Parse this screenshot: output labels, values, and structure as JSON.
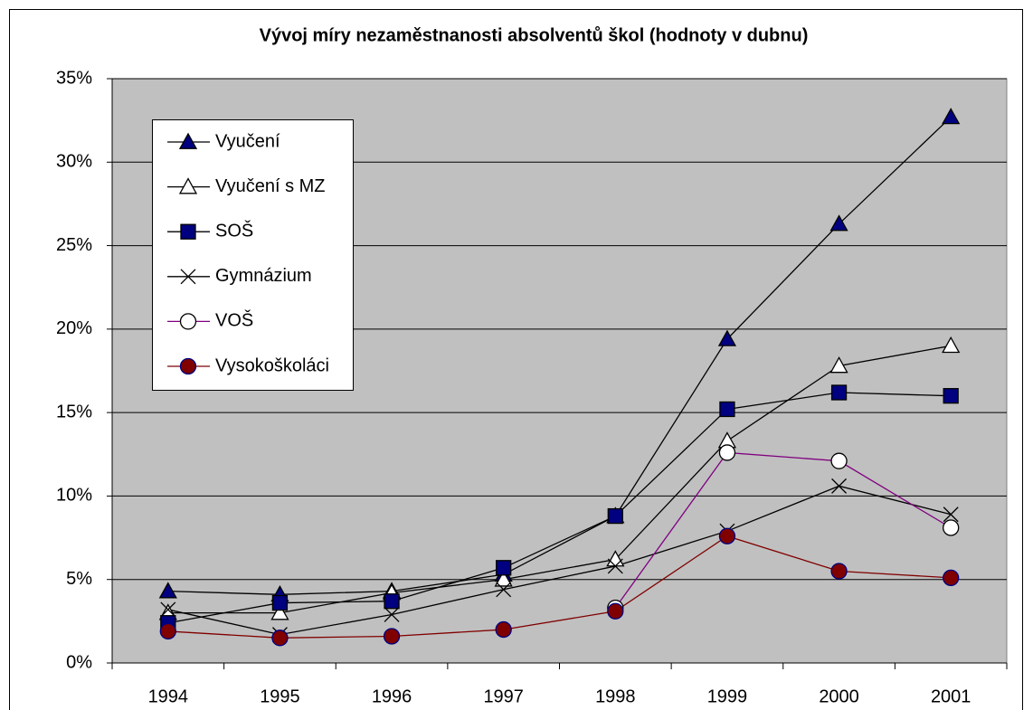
{
  "chart_data": {
    "type": "line",
    "title": "Vývoj míry nezaměstnanosti absolventů škol (hodnoty v dubnu)",
    "categories": [
      "1994",
      "1995",
      "1996",
      "1997",
      "1998",
      "1999",
      "2000",
      "2001"
    ],
    "series": [
      {
        "name": "Vyučení",
        "color": "#000000",
        "marker": "triangle",
        "marker_color": "#000080",
        "values": [
          4.3,
          4.1,
          4.3,
          5.3,
          8.8,
          19.4,
          26.3,
          32.7
        ]
      },
      {
        "name": "Vyučení s MZ",
        "color": "#000000",
        "marker": "triangle-open",
        "marker_color": "#ffffff",
        "values": [
          3.0,
          3.0,
          4.2,
          5.0,
          6.2,
          13.3,
          17.8,
          19.0
        ]
      },
      {
        "name": "SOŠ",
        "color": "#000000",
        "marker": "square",
        "marker_color": "#000080",
        "values": [
          2.4,
          3.6,
          3.7,
          5.7,
          8.8,
          15.2,
          16.2,
          16.0
        ]
      },
      {
        "name": "Gymnázium",
        "color": "#000000",
        "marker": "x",
        "marker_color": "#000000",
        "values": [
          3.2,
          1.7,
          2.9,
          4.4,
          5.8,
          7.9,
          10.6,
          8.9
        ]
      },
      {
        "name": "VOŠ",
        "color": "#800080",
        "marker": "circle-open",
        "marker_color": "#ffffff",
        "values": [
          null,
          null,
          null,
          null,
          3.3,
          12.6,
          12.1,
          8.1
        ]
      },
      {
        "name": "Vysokoškoláci",
        "color": "#800000",
        "marker": "circle",
        "marker_color": "#800000",
        "values": [
          1.9,
          1.5,
          1.6,
          2.0,
          3.1,
          7.6,
          5.5,
          5.1
        ]
      }
    ],
    "ylim": [
      0,
      35
    ],
    "yticks": [
      {
        "value": 0,
        "label": "0%"
      },
      {
        "value": 5,
        "label": "5%"
      },
      {
        "value": 10,
        "label": "10%"
      },
      {
        "value": 15,
        "label": "15%"
      },
      {
        "value": 20,
        "label": "20%"
      },
      {
        "value": 25,
        "label": "25%"
      },
      {
        "value": 30,
        "label": "30%"
      },
      {
        "value": 35,
        "label": "35%"
      }
    ],
    "grid": true,
    "legend": "upper left",
    "plot_background": "#c0c0c0"
  }
}
